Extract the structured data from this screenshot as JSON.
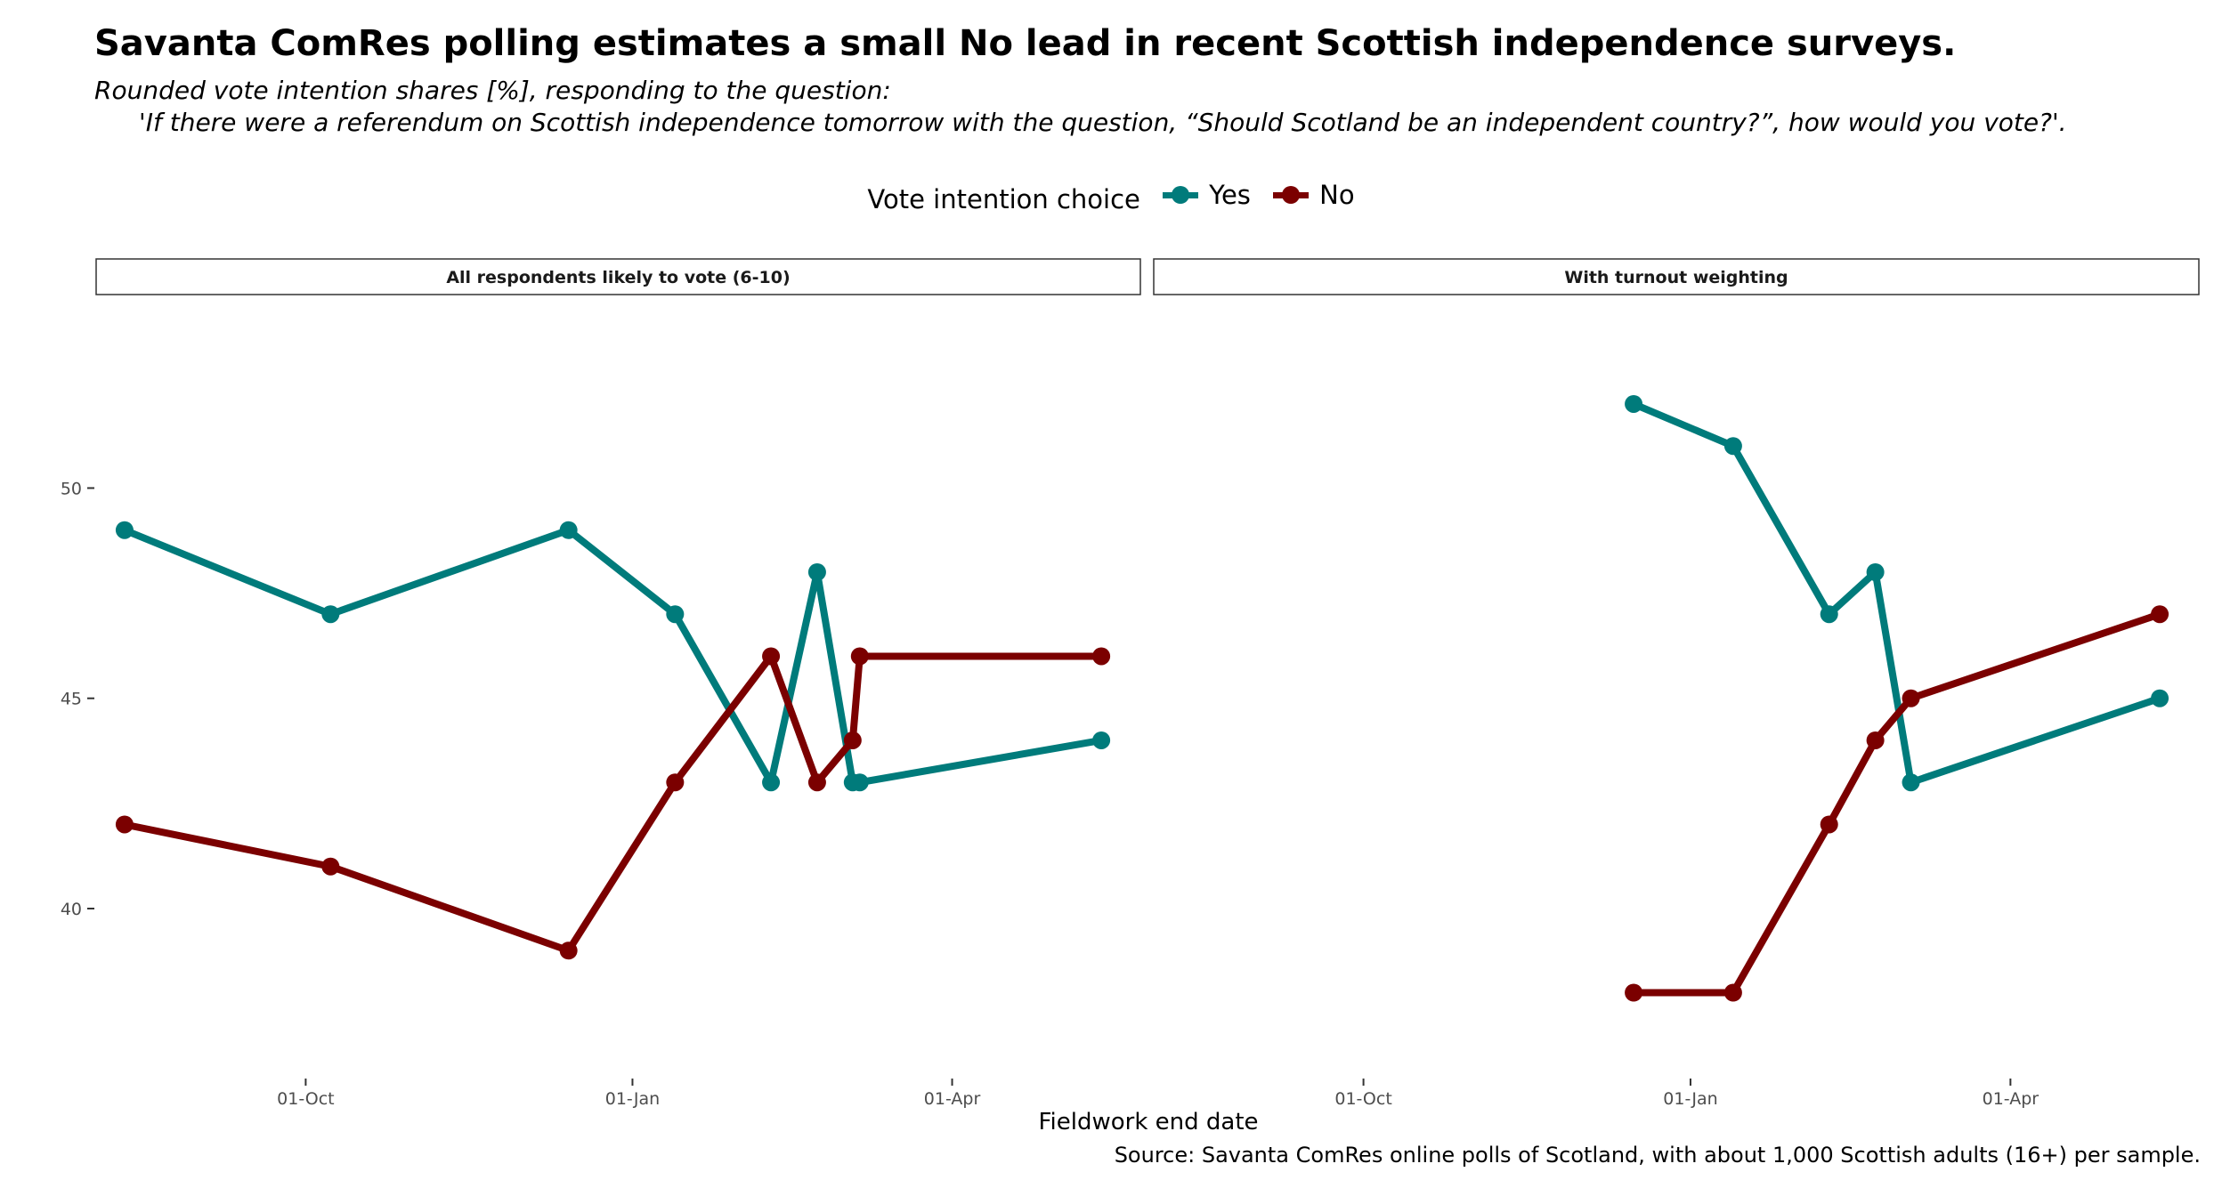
{
  "title": "Savanta ComRes polling estimates a small No lead in recent Scottish independence surveys.",
  "subtitle_line1": "Rounded vote intention shares [%], responding to the question:",
  "subtitle_line2": "'If there were a referendum on Scottish independence tomorrow with the question, “Should Scotland be an independent country?”, how would you vote?'.",
  "caption": "Source: Savanta ComRes online polls of Scotland, with about 1,000 Scottish adults (16+) per sample.",
  "legend": {
    "title": "Vote intention choice",
    "yes": "Yes",
    "no": "No"
  },
  "colors": {
    "yes": "#007B7B",
    "no": "#7B0000"
  },
  "chart_data": {
    "type": "line",
    "xlabel": "Fieldwork end date",
    "ylabel": "",
    "x_range": [
      "2020-08-03",
      "2021-05-24"
    ],
    "ylim": [
      36.0,
      54.2
    ],
    "y_ticks": [
      40,
      45,
      50
    ],
    "x_ticks": [
      {
        "date": "2020-10-01",
        "label": "01-Oct"
      },
      {
        "date": "2021-01-01",
        "label": "01-Jan"
      },
      {
        "date": "2021-04-01",
        "label": "01-Apr"
      }
    ],
    "grid": false,
    "legend_position": "top",
    "panels": [
      {
        "strip": "All respondents likely to vote (6-10)",
        "series": [
          {
            "name": "Yes",
            "color_key": "yes",
            "points": [
              {
                "x": "2020-08-11",
                "y": 49
              },
              {
                "x": "2020-10-08",
                "y": 47
              },
              {
                "x": "2020-12-14",
                "y": 49
              },
              {
                "x": "2021-01-13",
                "y": 47
              },
              {
                "x": "2021-02-09",
                "y": 43
              },
              {
                "x": "2021-02-22",
                "y": 48
              },
              {
                "x": "2021-03-04",
                "y": 43
              },
              {
                "x": "2021-03-06",
                "y": 43
              },
              {
                "x": "2021-05-13",
                "y": 44
              }
            ]
          },
          {
            "name": "No",
            "color_key": "no",
            "points": [
              {
                "x": "2020-08-11",
                "y": 42
              },
              {
                "x": "2020-10-08",
                "y": 41
              },
              {
                "x": "2020-12-14",
                "y": 39
              },
              {
                "x": "2021-01-13",
                "y": 43
              },
              {
                "x": "2021-02-09",
                "y": 46
              },
              {
                "x": "2021-02-22",
                "y": 43
              },
              {
                "x": "2021-03-04",
                "y": 44
              },
              {
                "x": "2021-03-06",
                "y": 46
              },
              {
                "x": "2021-05-13",
                "y": 46
              }
            ]
          }
        ]
      },
      {
        "strip": "With turnout weighting",
        "series": [
          {
            "name": "Yes",
            "color_key": "yes",
            "points": [
              {
                "x": "2020-12-16",
                "y": 52
              },
              {
                "x": "2021-01-13",
                "y": 51
              },
              {
                "x": "2021-02-09",
                "y": 47
              },
              {
                "x": "2021-02-22",
                "y": 48
              },
              {
                "x": "2021-03-04",
                "y": 43
              },
              {
                "x": "2021-05-13",
                "y": 45
              }
            ]
          },
          {
            "name": "No",
            "color_key": "no",
            "points": [
              {
                "x": "2020-12-16",
                "y": 38
              },
              {
                "x": "2021-01-13",
                "y": 38
              },
              {
                "x": "2021-02-09",
                "y": 42
              },
              {
                "x": "2021-02-22",
                "y": 44
              },
              {
                "x": "2021-03-04",
                "y": 45
              },
              {
                "x": "2021-05-13",
                "y": 47
              }
            ]
          }
        ]
      }
    ]
  }
}
